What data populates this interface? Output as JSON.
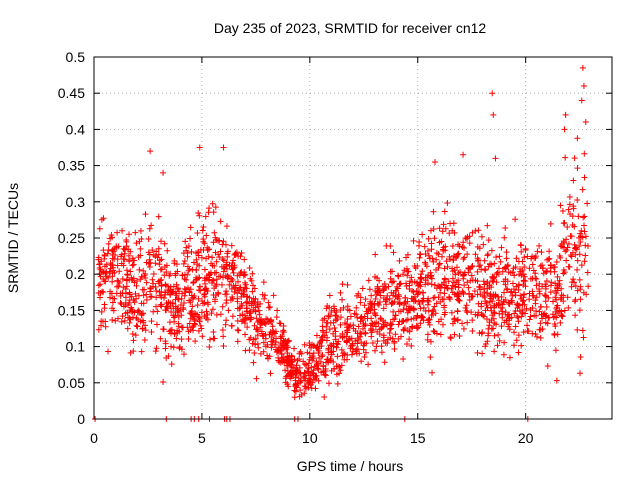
{
  "chart_data": {
    "type": "scatter",
    "title": "Day 235 of 2023, SRMTID for receiver cn12",
    "xlabel": "GPS time / hours",
    "ylabel": "SRMTID / TECUs",
    "xlim": [
      0,
      24
    ],
    "ylim": [
      0,
      0.5
    ],
    "grid": true,
    "marker": "+",
    "marker_color": "#ff0000",
    "xticks": [
      0,
      5,
      10,
      15,
      20
    ],
    "xtick_labels": [
      "0",
      "5",
      "10",
      "15",
      "20"
    ],
    "yticks": [
      0,
      0.05,
      0.1,
      0.15,
      0.2,
      0.25,
      0.3,
      0.35,
      0.4,
      0.45,
      0.5
    ],
    "ytick_labels": [
      "0",
      "0.05",
      "0.1",
      "0.15",
      "0.2",
      "0.25",
      "0.3",
      "0.35",
      "0.4",
      "0.45",
      "0.5"
    ],
    "zero_points_x": [
      0.05,
      3.35,
      4.5,
      4.65,
      4.85,
      5.35,
      6.05,
      6.15,
      6.3,
      9.3,
      9.45,
      14.4,
      20.1
    ],
    "envelope": {
      "x": [
        0.2,
        1,
        2,
        2.8,
        3.5,
        4,
        5,
        6,
        7,
        8,
        8.7,
        9.3,
        10,
        10.7,
        11.5,
        12.5,
        13.5,
        14.5,
        15.5,
        16.5,
        17.5,
        18.5,
        19.5,
        20.5,
        21.3,
        22,
        22.9
      ],
      "center": [
        0.2,
        0.19,
        0.18,
        0.2,
        0.15,
        0.16,
        0.19,
        0.2,
        0.16,
        0.12,
        0.1,
        0.06,
        0.07,
        0.1,
        0.12,
        0.13,
        0.16,
        0.16,
        0.18,
        0.2,
        0.19,
        0.16,
        0.17,
        0.18,
        0.16,
        0.24,
        0.25
      ],
      "spread": [
        0.07,
        0.07,
        0.07,
        0.09,
        0.07,
        0.07,
        0.08,
        0.08,
        0.06,
        0.05,
        0.04,
        0.03,
        0.04,
        0.05,
        0.05,
        0.05,
        0.06,
        0.06,
        0.08,
        0.09,
        0.08,
        0.07,
        0.07,
        0.07,
        0.08,
        0.12,
        0.14
      ]
    },
    "num_points": 2200,
    "annotated_points": [
      {
        "x": 2.6,
        "y": 0.37
      },
      {
        "x": 3.2,
        "y": 0.34
      },
      {
        "x": 4.9,
        "y": 0.375
      },
      {
        "x": 6.0,
        "y": 0.375
      },
      {
        "x": 15.8,
        "y": 0.355
      },
      {
        "x": 17.1,
        "y": 0.365
      },
      {
        "x": 18.45,
        "y": 0.45
      },
      {
        "x": 18.5,
        "y": 0.42
      },
      {
        "x": 18.6,
        "y": 0.36
      },
      {
        "x": 21.85,
        "y": 0.42
      },
      {
        "x": 21.8,
        "y": 0.4
      },
      {
        "x": 22.65,
        "y": 0.485
      },
      {
        "x": 22.7,
        "y": 0.46
      },
      {
        "x": 22.6,
        "y": 0.44
      },
      {
        "x": 9.3,
        "y": 0.03
      },
      {
        "x": 9.0,
        "y": 0.045
      },
      {
        "x": 21.4,
        "y": 0.095
      }
    ]
  }
}
